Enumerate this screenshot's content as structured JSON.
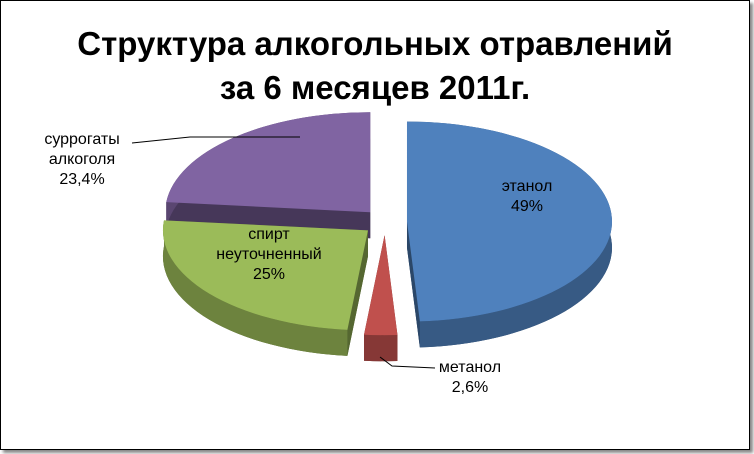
{
  "chart_data": {
    "type": "pie",
    "title": "Структура алкогольных отравлений за 6 месяцев 2011г.",
    "categories": [
      "этанол",
      "метанол",
      "спирт неуточненный",
      "суррогаты алкоголя"
    ],
    "values": [
      49,
      2.6,
      25,
      23.4
    ],
    "value_labels": [
      "49%",
      "2,6%",
      "25%",
      "23,4%"
    ],
    "colors": [
      "#4f81bd",
      "#c0504d",
      "#9bbb59",
      "#8064a2"
    ]
  }
}
